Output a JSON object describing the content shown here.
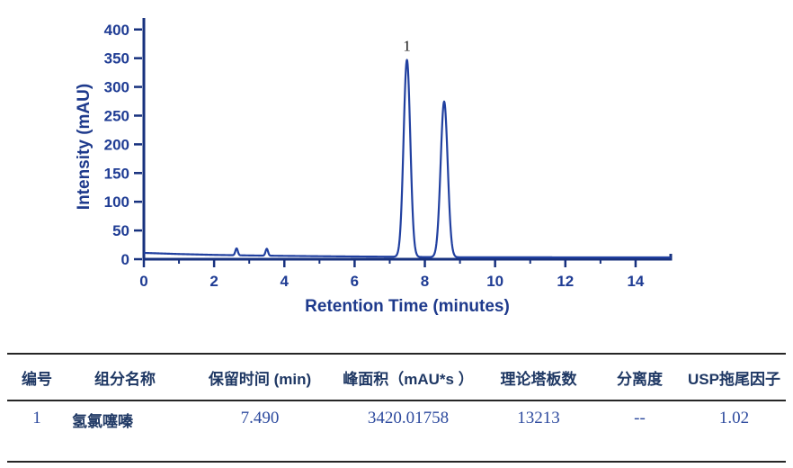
{
  "chart_data": {
    "type": "line",
    "title": "",
    "xlabel": "Retention Time (minutes)",
    "ylabel": "Intensity (mAU)",
    "xlim": [
      0,
      15
    ],
    "ylim": [
      0,
      420
    ],
    "x_major_ticks": [
      0,
      2,
      4,
      6,
      8,
      10,
      12,
      14
    ],
    "x_minor_ticks": [
      1,
      3,
      5,
      7,
      9,
      11,
      13
    ],
    "y_ticks": [
      0,
      50,
      100,
      150,
      200,
      250,
      300,
      350,
      400
    ],
    "grid": false,
    "legend": false,
    "baseline_points": [
      [
        0,
        11
      ],
      [
        1,
        9
      ],
      [
        2,
        7.5
      ],
      [
        3,
        6.5
      ],
      [
        4,
        5.8
      ],
      [
        5,
        5.2
      ],
      [
        6,
        4.7
      ],
      [
        7,
        4.3
      ],
      [
        7.8,
        3.9
      ],
      [
        8.2,
        3.7
      ],
      [
        9,
        3.4
      ],
      [
        10,
        3.3
      ],
      [
        15,
        3.2
      ]
    ],
    "peaks": [
      {
        "label": "1",
        "center": 7.49,
        "amplitude": 343,
        "sigma": 0.095
      },
      {
        "label": "",
        "center": 8.55,
        "amplitude": 271,
        "sigma": 0.1
      },
      {
        "label": "",
        "center": 2.64,
        "amplitude": 12,
        "sigma": 0.035
      },
      {
        "label": "",
        "center": 3.5,
        "amplitude": 12,
        "sigma": 0.035
      }
    ],
    "trace_color": "#2140a0",
    "axis_color": "#17317e",
    "tick_label_color": "#1f3c94",
    "peak_label_color": "#111111"
  },
  "table": {
    "headers": [
      "编号",
      "组分名称",
      "保留时间 (min)",
      "峰面积（mAU*s ）",
      "理论塔板数",
      "分离度",
      "USP拖尾因子"
    ],
    "rows": [
      [
        "1",
        "氢氯噻嗪",
        "7.490",
        "3420.01758",
        "13213",
        "--",
        "1.02"
      ]
    ],
    "header_color": "#1f3864",
    "value_color": "#2d4a9e",
    "rule_color": "#262626"
  }
}
